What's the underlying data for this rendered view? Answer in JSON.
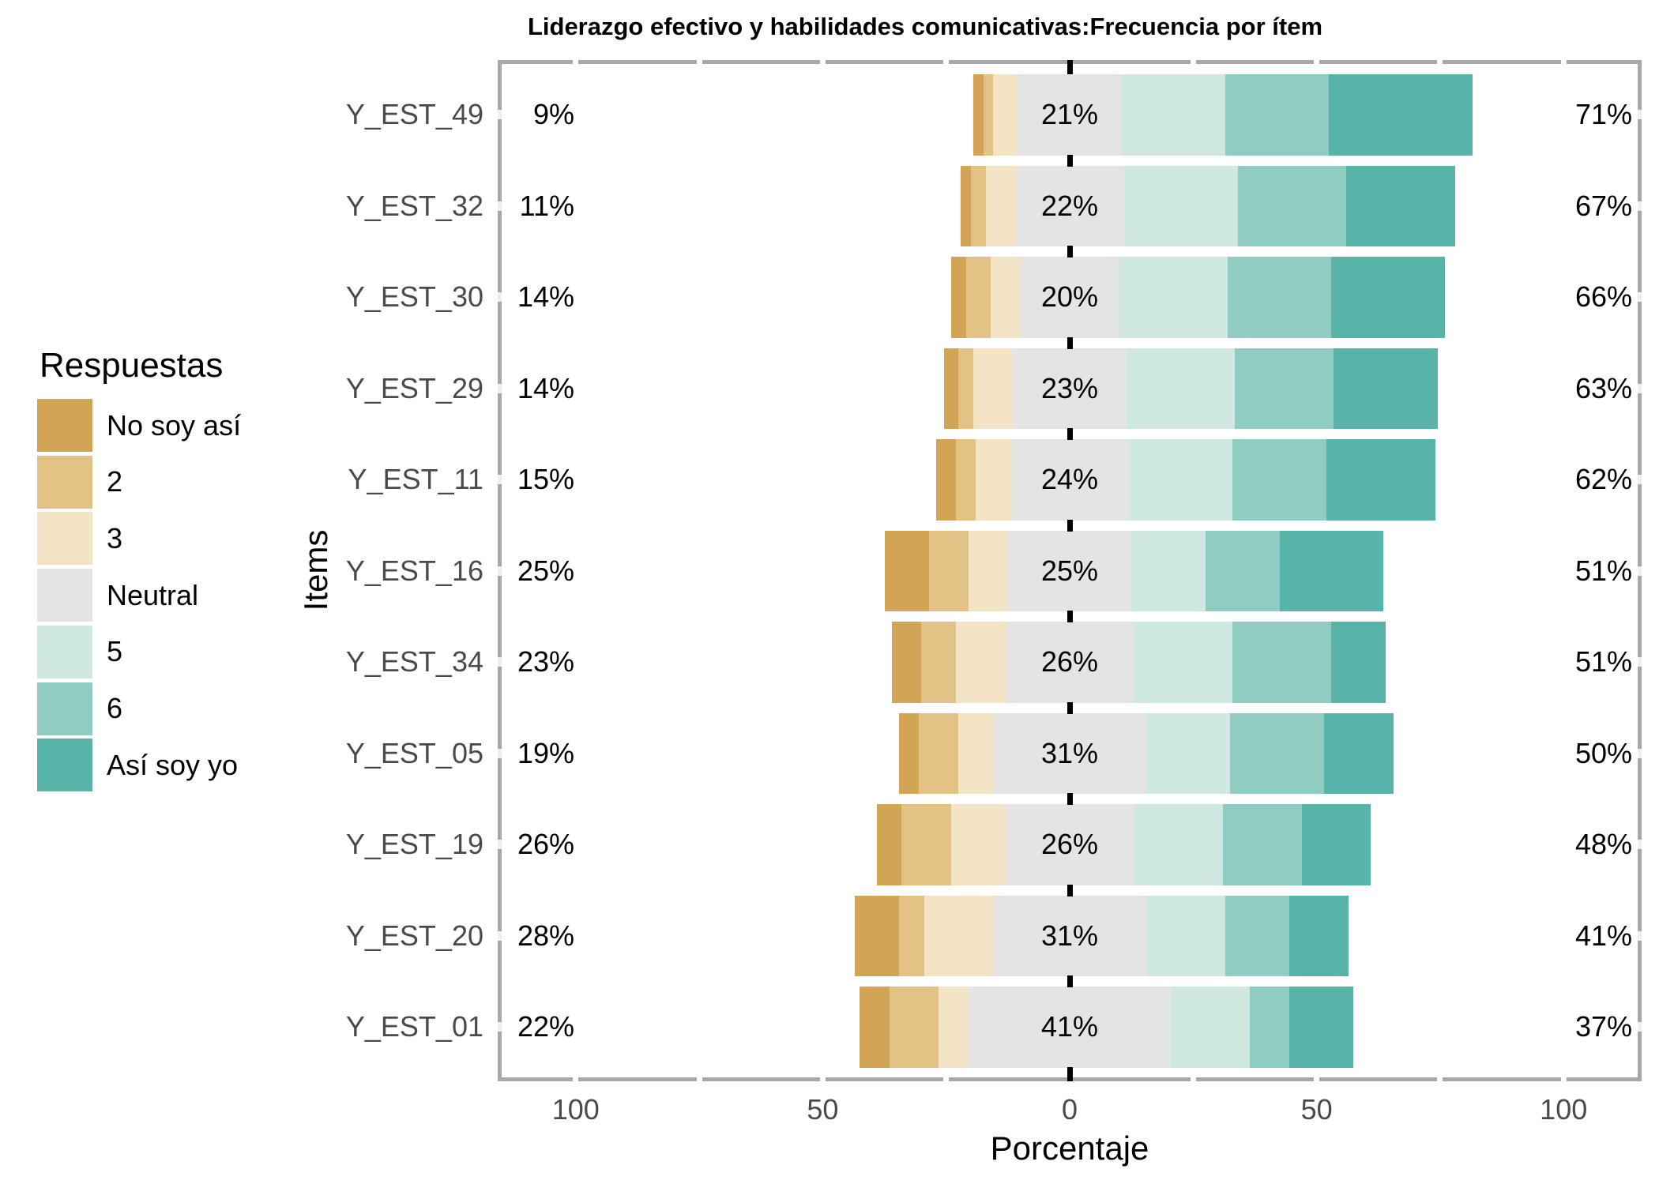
{
  "chart_data": {
    "type": "bar",
    "subtype": "diverging-stacked-likert",
    "title": "Liderazgo efectivo y habilidades comunicativas:Frecuencia por ítem",
    "xlabel": "Porcentaje",
    "ylabel": "Items",
    "legend_title": "Respuestas",
    "legend_position": "left",
    "levels": [
      "No soy así",
      "2",
      "3",
      "Neutral",
      "5",
      "6",
      "Así soy yo"
    ],
    "colors": [
      "#d2a556",
      "#e2c285",
      "#f2e4c5",
      "#e4e4e2",
      "#cfe8e2",
      "#90ccc1",
      "#58b3a9"
    ],
    "panel_border_color": "#a8a8a8",
    "text_gray": "#4a4a4a",
    "xlim": [
      -115,
      115
    ],
    "x_tick_values": [
      -100,
      -50,
      0,
      50,
      100
    ],
    "x_tick_labels": [
      "100",
      "50",
      "0",
      "50",
      "100"
    ],
    "minor_tick_values": [
      -100,
      -75,
      -50,
      -25,
      25,
      50,
      75,
      100
    ],
    "zero_line": {
      "value": 0,
      "style": "dashed",
      "color": "#000000"
    },
    "grid": false,
    "items": [
      {
        "item": "Y_EST_49",
        "low_label": "9%",
        "neutral_label": "21%",
        "high_label": "71%",
        "values": [
          2,
          2,
          5,
          21,
          21,
          21,
          29
        ]
      },
      {
        "item": "Y_EST_32",
        "low_label": "11%",
        "neutral_label": "22%",
        "high_label": "67%",
        "values": [
          2,
          3,
          6,
          22,
          23,
          22,
          22
        ]
      },
      {
        "item": "Y_EST_30",
        "low_label": "14%",
        "neutral_label": "20%",
        "high_label": "66%",
        "values": [
          3,
          5,
          6,
          20,
          22,
          21,
          23
        ]
      },
      {
        "item": "Y_EST_29",
        "low_label": "14%",
        "neutral_label": "23%",
        "high_label": "63%",
        "values": [
          3,
          3,
          8,
          23,
          22,
          20,
          21
        ]
      },
      {
        "item": "Y_EST_11",
        "low_label": "15%",
        "neutral_label": "24%",
        "high_label": "62%",
        "values": [
          4,
          4,
          7,
          24,
          21,
          19,
          22
        ]
      },
      {
        "item": "Y_EST_16",
        "low_label": "25%",
        "neutral_label": "25%",
        "high_label": "51%",
        "values": [
          9,
          8,
          8,
          25,
          15,
          15,
          21
        ]
      },
      {
        "item": "Y_EST_34",
        "low_label": "23%",
        "neutral_label": "26%",
        "high_label": "51%",
        "values": [
          6,
          7,
          10,
          26,
          20,
          20,
          11
        ]
      },
      {
        "item": "Y_EST_05",
        "low_label": "19%",
        "neutral_label": "31%",
        "high_label": "50%",
        "values": [
          4,
          8,
          7,
          31,
          17,
          19,
          14
        ]
      },
      {
        "item": "Y_EST_19",
        "low_label": "26%",
        "neutral_label": "26%",
        "high_label": "48%",
        "values": [
          5,
          10,
          11,
          26,
          18,
          16,
          14
        ]
      },
      {
        "item": "Y_EST_20",
        "low_label": "28%",
        "neutral_label": "31%",
        "high_label": "41%",
        "values": [
          9,
          5,
          14,
          31,
          16,
          13,
          12
        ]
      },
      {
        "item": "Y_EST_01",
        "low_label": "22%",
        "neutral_label": "41%",
        "high_label": "37%",
        "values": [
          6,
          10,
          6,
          41,
          16,
          8,
          13
        ]
      }
    ]
  }
}
